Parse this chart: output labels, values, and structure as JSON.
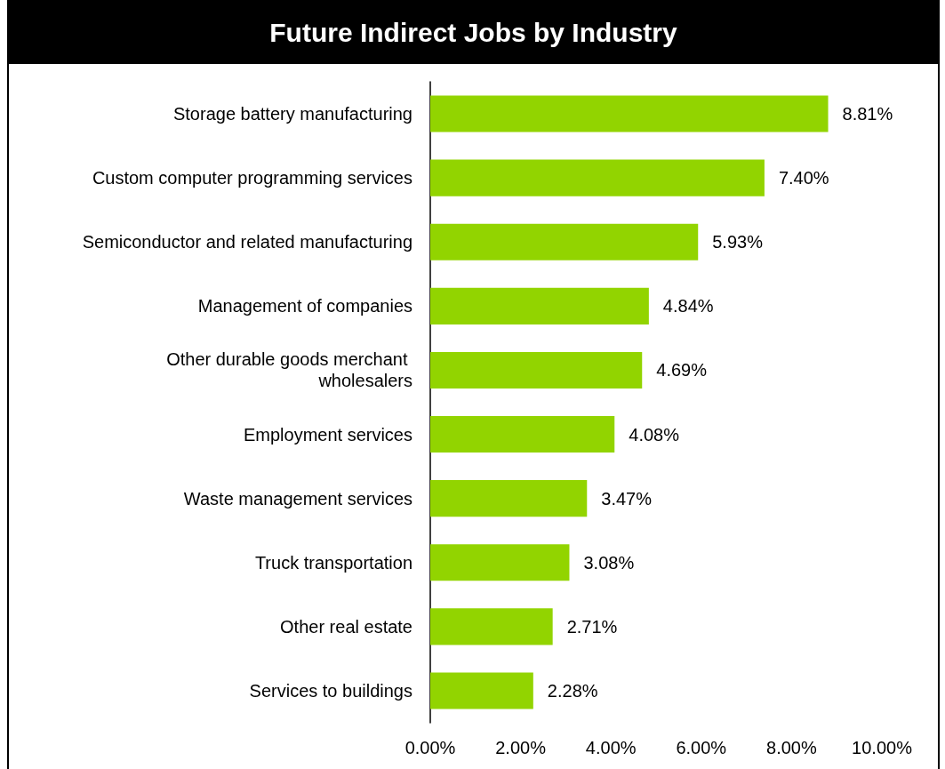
{
  "chart_data": {
    "type": "bar",
    "title": "Future Indirect Jobs by Industry",
    "orientation": "horizontal",
    "categories": [
      "Storage battery manufacturing",
      "Custom computer programming services",
      "Semiconductor and related manufacturing",
      "Management of companies",
      "Other durable goods merchant wholesalers",
      "Employment services",
      "Waste management services",
      "Truck transportation",
      "Other real estate",
      "Services to buildings"
    ],
    "values": [
      8.81,
      7.4,
      5.93,
      4.84,
      4.69,
      4.08,
      3.47,
      3.08,
      2.71,
      2.28
    ],
    "value_labels": [
      "8.81%",
      "7.40%",
      "5.93%",
      "4.84%",
      "4.69%",
      "4.08%",
      "3.47%",
      "3.08%",
      "2.71%",
      "2.28%"
    ],
    "color": "#92d400",
    "xlim": [
      0,
      10
    ],
    "xticks": [
      {
        "value": 0,
        "label": "0.00%"
      },
      {
        "value": 2,
        "label": "2.00%"
      },
      {
        "value": 4,
        "label": "4.00%"
      },
      {
        "value": 6,
        "label": "6.00%"
      },
      {
        "value": 8,
        "label": "8.00%"
      },
      {
        "value": 10,
        "label": "10.00%"
      }
    ],
    "grid": false
  }
}
